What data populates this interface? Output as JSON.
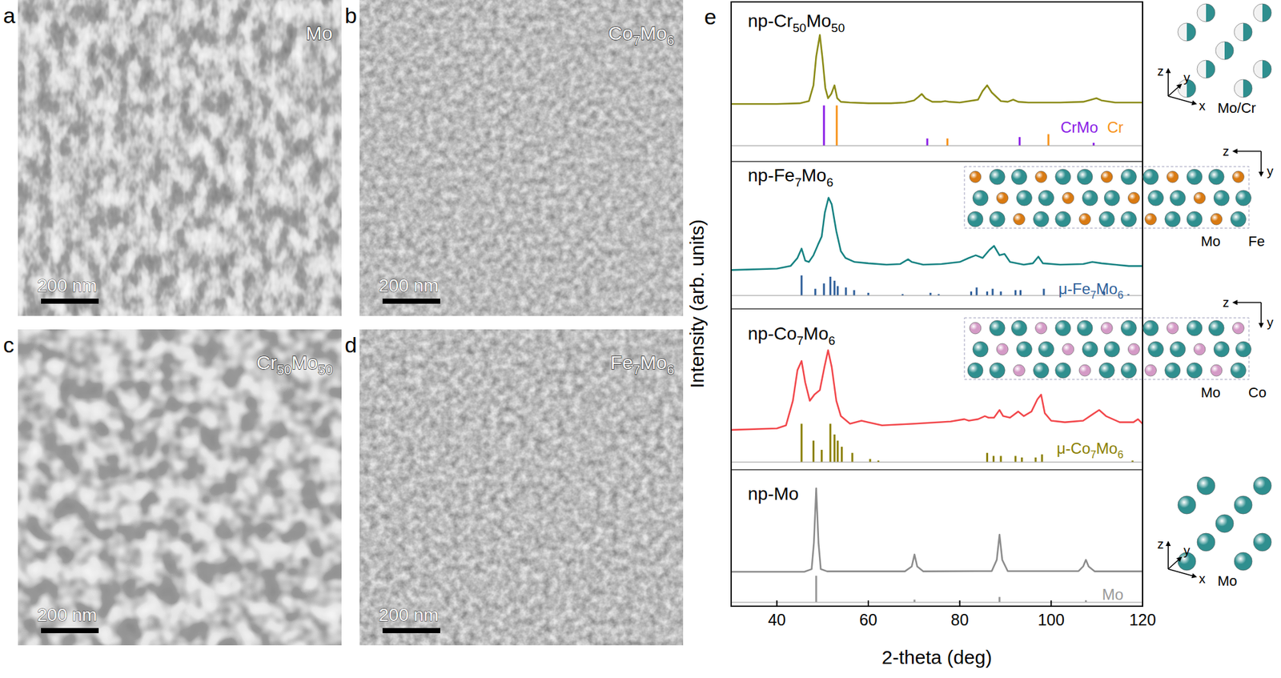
{
  "sem_panels": [
    {
      "letter": "a",
      "label": "Mo",
      "scale_bar": "200 nm"
    },
    {
      "letter": "b",
      "label": "Co7Mo6",
      "scale_bar": "200 nm"
    },
    {
      "letter": "c",
      "label": "Cr50Mo50",
      "scale_bar": "200 nm"
    },
    {
      "letter": "d",
      "label": "Fe7Mo6",
      "scale_bar": "200 nm"
    }
  ],
  "chart_data": {
    "type": "line",
    "letter": "e",
    "x_label": "2-theta (deg)",
    "y_label": "Intensity (arb. units)",
    "xlim": [
      30,
      120
    ],
    "xticks": [
      40,
      60,
      80,
      100,
      120
    ],
    "tick_labels": "x",
    "panels": [
      {
        "ylim": [
          -11,
          100
        ],
        "series": [
          {
            "name": "np-Cr50Mo50",
            "type": "line",
            "color": "#8b8b17",
            "x": [
              30,
              40,
              45,
              47,
              48,
              48.6,
              49.4,
              50,
              50.6,
              51.2,
              51.9,
              52.6,
              53.2,
              54,
              56,
              60,
              65,
              68,
              70,
              71,
              71.7,
              72.5,
              74,
              75.8,
              76.8,
              77.8,
              80,
              84,
              85,
              86,
              87,
              89,
              90.5,
              91.7,
              92.8,
              95,
              102,
              107,
              108.8,
              109.9,
              111,
              114,
              120
            ],
            "values": [
              29,
              29,
              29.5,
              31,
              42,
              62,
              77,
              60,
              40,
              33,
              36,
              42,
              33,
              30.5,
              30,
              29.5,
              29.5,
              30,
              31.5,
              34,
              36,
              33,
              30.5,
              30.5,
              31,
              30.5,
              30,
              32,
              38,
              42,
              37,
              31,
              30.5,
              32,
              30.5,
              30,
              30,
              30.5,
              32,
              33,
              31.5,
              30,
              30
            ]
          },
          {
            "name": "CrMo",
            "type": "bar",
            "color": "#8a1ee6",
            "x": [
              50.3,
              72.9,
              93.1,
              109.3
            ],
            "values": [
              28,
              5,
              6,
              2
            ]
          },
          {
            "name": "Cr",
            "type": "bar",
            "color": "#f7941d",
            "x": [
              53.1,
              77.3,
              99.4
            ],
            "values": [
              28,
              5,
              8
            ]
          }
        ]
      },
      {
        "ylim": [
          -10,
          100
        ],
        "series": [
          {
            "name": "np-Fe7Mo6",
            "type": "line",
            "color": "#168282",
            "x": [
              30,
              40,
              43,
              44.5,
              45.4,
              46.2,
              47,
              48,
              49,
              49.8,
              50.5,
              51.3,
              52,
              53,
              54,
              55,
              57,
              60,
              64,
              67,
              68.7,
              69.5,
              72,
              76,
              80,
              82,
              83.5,
              85,
              86.5,
              87.5,
              88.7,
              89.8,
              91,
              94,
              96,
              97.2,
              98.2,
              102,
              107,
              109,
              111,
              114,
              117,
              120
            ],
            "values": [
              19,
              20,
              22,
              28,
              35,
              26,
              25,
              30,
              38,
              44,
              62,
              73,
              68,
              48,
              33,
              28,
              25,
              24,
              23,
              23.5,
              27,
              25,
              23,
              23.5,
              25,
              28,
              30,
              28,
              34,
              37,
              30,
              31,
              25,
              23,
              24,
              29,
              24,
              23,
              23.5,
              25,
              24,
              23,
              22,
              22
            ]
          },
          {
            "name": "μ-Fe7Mo6",
            "type": "bar",
            "color": "#2f5f9a",
            "x": [
              45.4,
              48.4,
              50.3,
              51.7,
              52.6,
              53.3,
              55.1,
              56.9,
              60,
              67.5,
              73.6,
              75.4,
              82.5,
              83.7,
              86,
              87.2,
              89,
              92.2,
              93.3,
              98.4,
              111.6,
              116.9
            ],
            "values": [
              15,
              5,
              9,
              14,
              11,
              7,
              6,
              4,
              2,
              1,
              2,
              1,
              3,
              6,
              3,
              5,
              3,
              4,
              4,
              5,
              3,
              1
            ]
          }
        ]
      },
      {
        "ylim": [
          -5,
          100
        ],
        "series": [
          {
            "name": "np-Co7Mo6",
            "type": "line",
            "color": "#f2474b",
            "x": [
              30,
              40,
              42,
              43.5,
              44.5,
              45.4,
              46.2,
              47.2,
              48.2,
              49.4,
              50.4,
              51.2,
              52,
              53,
              54,
              56,
              58.5,
              60,
              63,
              70,
              78,
              81,
              82,
              84,
              85.5,
              86.3,
              87.5,
              88.7,
              89.5,
              91,
              92.8,
              94,
              95.7,
              97,
              97.8,
              98.6,
              100,
              103,
              107,
              109,
              110.5,
              112,
              115,
              118,
              119,
              120
            ],
            "values": [
              21,
              22,
              24,
              40,
              60,
              66,
              52,
              40,
              44,
              47,
              62,
              73,
              62,
              40,
              30,
              25,
              27,
              26,
              24,
              25,
              26.5,
              28,
              27,
              28,
              30,
              29,
              29,
              34,
              30,
              29,
              33,
              30,
              33,
              41,
              44,
              32,
              27,
              26,
              27,
              31,
              34,
              30,
              26,
              26,
              28,
              25
            ]
          },
          {
            "name": "μ-Co7Mo6",
            "type": "bar",
            "color": "#8b8000",
            "x": [
              45.4,
              48,
              49.8,
              51.7,
              52.6,
              53.3,
              54.2,
              56.5,
              60.4,
              62.2,
              86,
              87.4,
              89,
              92.2,
              93.6,
              96.6,
              98,
              117.8
            ],
            "values": [
              25,
              14,
              8,
              25,
              18,
              14,
              10,
              6,
              2,
              1,
              6,
              4,
              4,
              4,
              3,
              3,
              5,
              1
            ]
          }
        ]
      },
      {
        "ylim": [
          -3,
          100
        ],
        "series": [
          {
            "name": "np-Mo",
            "type": "line",
            "color": "#8c8c8c",
            "x": [
              30,
              46,
              47.6,
              48.1,
              48.6,
              49.1,
              49.6,
              51,
              68,
              69.5,
              70.1,
              70.7,
              72,
              87,
              88.1,
              88.7,
              89.3,
              90.5,
              106,
              107,
              107.6,
              108.2,
              109.5,
              120
            ],
            "values": [
              23,
              23,
              25,
              45,
              86,
              45,
              25,
              23.3,
              23.3,
              27,
              36,
              27,
              23.3,
              23.5,
              32,
              51,
              32,
              23.5,
              23.5,
              27,
              32,
              27,
              23.3,
              23.3
            ]
          },
          {
            "name": "Mo",
            "type": "bar",
            "color": "#9a9a9a",
            "x": [
              48.6,
              70.1,
              88.7,
              107.6
            ],
            "values": [
              20,
              2,
              4,
              1.5
            ]
          }
        ]
      }
    ]
  },
  "insets": [
    {
      "axes": [
        "z",
        "y",
        "x"
      ],
      "atoms": [
        {
          "label": "Mo/Cr",
          "colors": [
            "#2f8f8f",
            "#f2f2f2"
          ]
        }
      ]
    },
    {
      "axes": [
        "z",
        "y"
      ],
      "atoms": [
        {
          "label": "Mo",
          "color": "#2f8f8f"
        },
        {
          "label": "Fe",
          "color": "#d97a12"
        }
      ]
    },
    {
      "axes": [
        "z",
        "y"
      ],
      "atoms": [
        {
          "label": "Mo",
          "color": "#2f8f8f"
        },
        {
          "label": "Co",
          "color": "#d49ac6"
        }
      ]
    },
    {
      "axes": [
        "z",
        "y",
        "x"
      ],
      "atoms": [
        {
          "label": "Mo",
          "color": "#2f8f8f"
        }
      ]
    }
  ]
}
